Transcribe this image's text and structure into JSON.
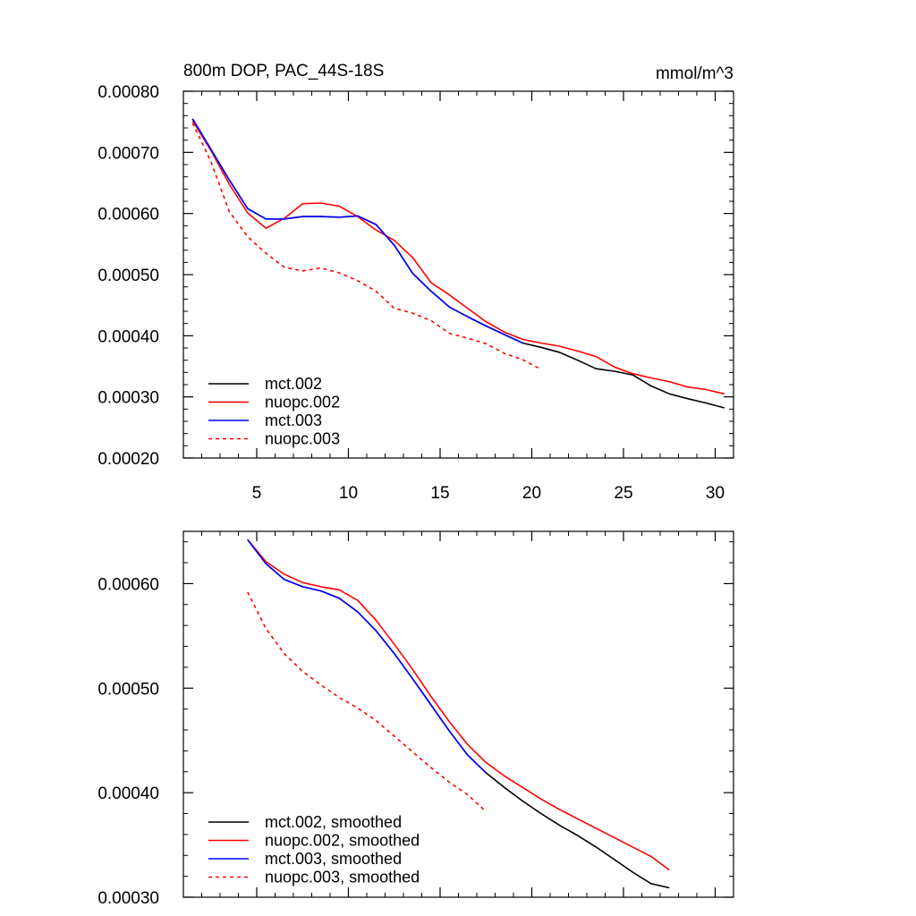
{
  "chart_data": [
    {
      "type": "line",
      "title": "800m DOP, PAC_44S-18S",
      "units": "mmol/m^3",
      "xlim": [
        1,
        31
      ],
      "ylim": [
        0.0002,
        0.0008
      ],
      "x_ticks": [
        5,
        10,
        15,
        20,
        25,
        30
      ],
      "x_tick_labels": [
        "5",
        "10",
        "15",
        "20",
        "25",
        "30"
      ],
      "y_ticks": [
        0.0002,
        0.0003,
        0.0004,
        0.0005,
        0.0006,
        0.0007,
        0.0008
      ],
      "y_tick_labels": [
        "0.00020",
        "0.00030",
        "0.00040",
        "0.00050",
        "0.00060",
        "0.00070",
        "0.00080"
      ],
      "legend_position": "bottom-left",
      "series": [
        {
          "name": "mct.002",
          "color": "#000000",
          "dash": "solid",
          "x": [
            1.5,
            2.5,
            3.5,
            4.5,
            5.5,
            6.5,
            7.5,
            8.5,
            9.5,
            10.5,
            11.5,
            12.5,
            13.5,
            14.5,
            15.5,
            16.5,
            17.5,
            18.5,
            19.5,
            20.5,
            21.5,
            22.5,
            23.5,
            24.5,
            25.5,
            26.5,
            27.5,
            28.5,
            29.5,
            30.5
          ],
          "values": [
            0.000755,
            0.000705,
            0.000655,
            0.000608,
            0.000591,
            0.000591,
            0.000595,
            0.000595,
            0.000594,
            0.000596,
            0.000582,
            0.000548,
            0.000502,
            0.000473,
            0.000447,
            0.000431,
            0.000416,
            0.000402,
            0.000388,
            0.000381,
            0.000373,
            0.00036,
            0.000346,
            0.000342,
            0.000336,
            0.000318,
            0.000305,
            0.000297,
            0.00029,
            0.000282
          ]
        },
        {
          "name": "nuopc.002",
          "color": "#ff0000",
          "dash": "solid",
          "x": [
            1.5,
            2.5,
            3.5,
            4.5,
            5.5,
            6.5,
            7.5,
            8.5,
            9.5,
            10.5,
            11.5,
            12.5,
            13.5,
            14.5,
            15.5,
            16.5,
            17.5,
            18.5,
            19.5,
            20.5,
            21.5,
            22.5,
            23.5,
            24.5,
            25.5,
            26.5,
            27.5,
            28.5,
            29.5,
            30.5
          ],
          "values": [
            0.000752,
            0.000703,
            0.000648,
            0.000601,
            0.000576,
            0.000592,
            0.000616,
            0.000617,
            0.000612,
            0.000595,
            0.000573,
            0.000556,
            0.000528,
            0.000487,
            0.000467,
            0.000445,
            0.000423,
            0.000406,
            0.000394,
            0.000388,
            0.000383,
            0.000375,
            0.000366,
            0.000349,
            0.000338,
            0.000331,
            0.000325,
            0.000316,
            0.000312,
            0.000305
          ]
        },
        {
          "name": "mct.003",
          "color": "#0000ff",
          "dash": "solid",
          "x": [
            1.5,
            2.5,
            3.5,
            4.5,
            5.5,
            6.5,
            7.5,
            8.5,
            9.5,
            10.5,
            11.5,
            12.5,
            13.5,
            14.5,
            15.5,
            16.5,
            17.5,
            18.5,
            19.5
          ],
          "values": [
            0.000755,
            0.000705,
            0.000655,
            0.000608,
            0.000591,
            0.000591,
            0.000595,
            0.000595,
            0.000594,
            0.000596,
            0.000582,
            0.000548,
            0.000502,
            0.000473,
            0.000447,
            0.000431,
            0.000416,
            0.000402,
            0.000388
          ]
        },
        {
          "name": "nuopc.003",
          "color": "#ff0000",
          "dash": "dashed",
          "x": [
            1.5,
            2.5,
            3.5,
            4.5,
            5.5,
            6.5,
            7.5,
            8.5,
            9.5,
            10.5,
            11.5,
            12.5,
            13.5,
            14.5,
            15.5,
            16.5,
            17.5,
            18.5,
            19.5,
            20.5
          ],
          "values": [
            0.000748,
            0.000685,
            0.000603,
            0.000562,
            0.000535,
            0.000512,
            0.000506,
            0.000511,
            0.000503,
            0.00049,
            0.000473,
            0.000445,
            0.000437,
            0.000425,
            0.000404,
            0.000396,
            0.000387,
            0.000371,
            0.000361,
            0.000345
          ]
        }
      ]
    },
    {
      "type": "line",
      "title": "",
      "xlim": [
        1,
        31
      ],
      "ylim": [
        0.0003,
        0.00065
      ],
      "x_ticks": [
        5,
        10,
        15,
        20,
        25,
        30
      ],
      "x_tick_labels": [],
      "y_ticks": [
        0.0003,
        0.0004,
        0.0005,
        0.0006
      ],
      "y_tick_labels": [
        "0.00030",
        "0.00040",
        "0.00050",
        "0.00060"
      ],
      "legend_position": "bottom-left",
      "series": [
        {
          "name": "mct.002, smoothed",
          "color": "#000000",
          "dash": "solid",
          "x": [
            4.5,
            5.5,
            6.5,
            7.5,
            8.5,
            9.5,
            10.5,
            11.5,
            12.5,
            13.5,
            14.5,
            15.5,
            16.5,
            17.5,
            18.5,
            19.5,
            20.5,
            21.5,
            22.5,
            23.5,
            24.5,
            25.5,
            26.5,
            27.5
          ],
          "values": [
            0.000642,
            0.000619,
            0.000604,
            0.000597,
            0.000593,
            0.000586,
            0.000573,
            0.000555,
            0.000533,
            0.000509,
            0.000484,
            0.000459,
            0.000436,
            0.000419,
            0.000405,
            0.000392,
            0.00038,
            0.000369,
            0.000359,
            0.000348,
            0.000336,
            0.000324,
            0.000313,
            0.000309
          ]
        },
        {
          "name": "nuopc.002, smoothed",
          "color": "#ff0000",
          "dash": "solid",
          "x": [
            4.5,
            5.5,
            6.5,
            7.5,
            8.5,
            9.5,
            10.5,
            11.5,
            12.5,
            13.5,
            14.5,
            15.5,
            16.5,
            17.5,
            18.5,
            19.5,
            20.5,
            21.5,
            22.5,
            23.5,
            24.5,
            25.5,
            26.5,
            27.5
          ],
          "values": [
            0.000642,
            0.000621,
            0.000609,
            0.000601,
            0.000597,
            0.000594,
            0.000584,
            0.000565,
            0.000542,
            0.000518,
            0.000492,
            0.000468,
            0.000446,
            0.000429,
            0.000416,
            0.000405,
            0.000394,
            0.000384,
            0.000375,
            0.000366,
            0.000357,
            0.000348,
            0.000339,
            0.000326
          ]
        },
        {
          "name": "mct.003, smoothed",
          "color": "#0000ff",
          "dash": "solid",
          "x": [
            4.5,
            5.5,
            6.5,
            7.5,
            8.5,
            9.5,
            10.5,
            11.5,
            12.5,
            13.5,
            14.5,
            15.5,
            16.5,
            17.5
          ],
          "values": [
            0.000642,
            0.000619,
            0.000604,
            0.000597,
            0.000593,
            0.000586,
            0.000573,
            0.000555,
            0.000533,
            0.000509,
            0.000484,
            0.000459,
            0.000436,
            0.000419
          ]
        },
        {
          "name": "nuopc.003, smoothed",
          "color": "#ff0000",
          "dash": "dashed",
          "x": [
            4.5,
            5.5,
            6.5,
            7.5,
            8.5,
            9.5,
            10.5,
            11.5,
            12.5,
            13.5,
            14.5,
            15.5,
            16.5,
            17.5
          ],
          "values": [
            0.000592,
            0.000557,
            0.000533,
            0.000516,
            0.000503,
            0.000491,
            0.000481,
            0.000469,
            0.000454,
            0.000439,
            0.000424,
            0.00041,
            0.000398,
            0.000382
          ]
        }
      ]
    }
  ]
}
